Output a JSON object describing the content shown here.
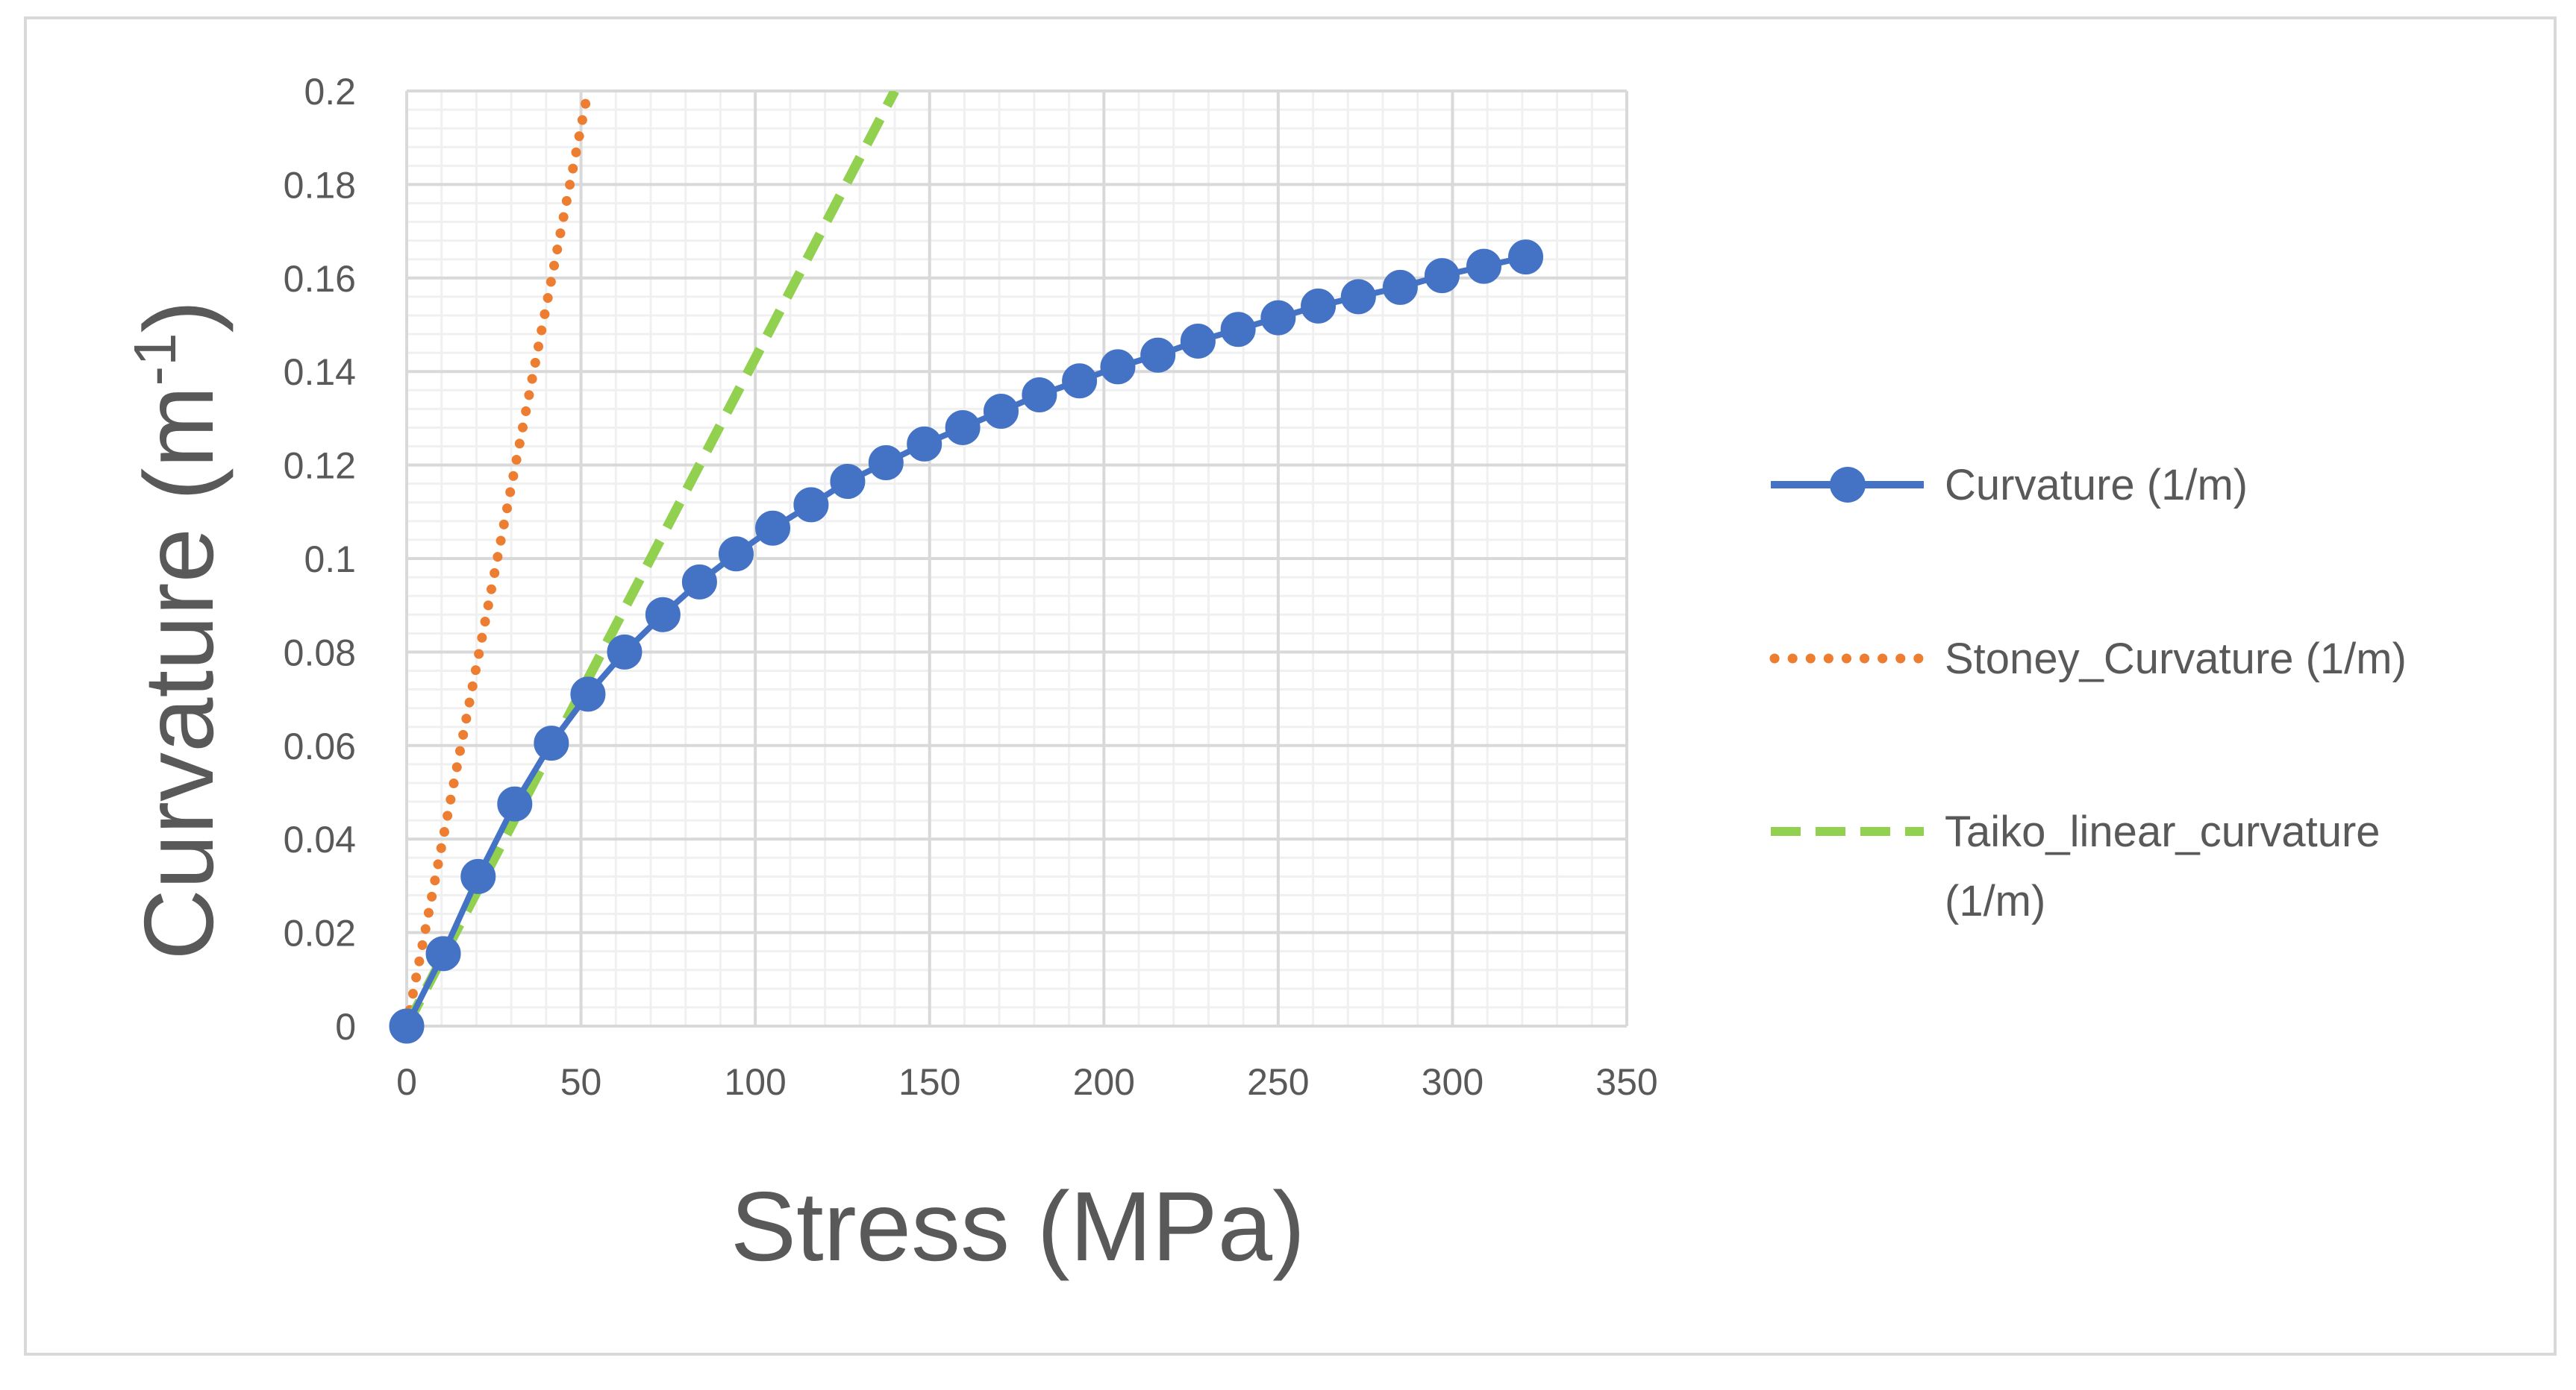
{
  "chart_data": {
    "type": "line",
    "title": "",
    "xlabel": "Stress (MPa)",
    "ylabel_main": "Curvature (m",
    "ylabel_sup": "-1",
    "ylabel_close": ")",
    "xlim": [
      0,
      350
    ],
    "ylim": [
      0,
      0.2
    ],
    "xmajor": 50,
    "xminor": 10,
    "ymajor": 0.02,
    "yminor": 0.004,
    "xticks": [
      "0",
      "50",
      "100",
      "150",
      "200",
      "250",
      "300",
      "350"
    ],
    "yticks": [
      "0",
      "0.02",
      "0.04",
      "0.06",
      "0.08",
      "0.1",
      "0.12",
      "0.14",
      "0.16",
      "0.18",
      "0.2"
    ],
    "grid": true,
    "legend_position": "right",
    "series": [
      {
        "name": "Curvature (1/m)",
        "legend_lines": [
          "Curvature (1/m)"
        ],
        "color": "#4472c4",
        "style": "solid-markers",
        "x": [
          0,
          10.5,
          20.5,
          31,
          41.5,
          52,
          62.5,
          73.5,
          84,
          94.5,
          105,
          116,
          126.5,
          137.5,
          148.5,
          159.5,
          170.5,
          181.5,
          193,
          204,
          215.5,
          227,
          238.5,
          250,
          261.5,
          273,
          285,
          297,
          309,
          321
        ],
        "y": [
          0,
          0.0155,
          0.032,
          0.0475,
          0.0605,
          0.071,
          0.08,
          0.088,
          0.095,
          0.101,
          0.1065,
          0.1115,
          0.1165,
          0.1205,
          0.1245,
          0.128,
          0.1315,
          0.135,
          0.138,
          0.141,
          0.1435,
          0.1465,
          0.149,
          0.1515,
          0.154,
          0.156,
          0.158,
          0.1605,
          0.1625,
          0.1645
        ]
      },
      {
        "name": "Stoney_Curvature (1/m)",
        "legend_lines": [
          "Stoney_Curvature (1/m)"
        ],
        "color": "#ed7d31",
        "style": "dotted",
        "x": [
          0,
          52
        ],
        "y": [
          0,
          0.2
        ]
      },
      {
        "name": "Taiko_linear_curvature (1/m)",
        "legend_lines": [
          "Taiko_linear_curvature",
          "(1/m)"
        ],
        "color": "#92d050",
        "style": "dashed",
        "x": [
          0,
          140
        ],
        "y": [
          0,
          0.2
        ]
      }
    ]
  }
}
